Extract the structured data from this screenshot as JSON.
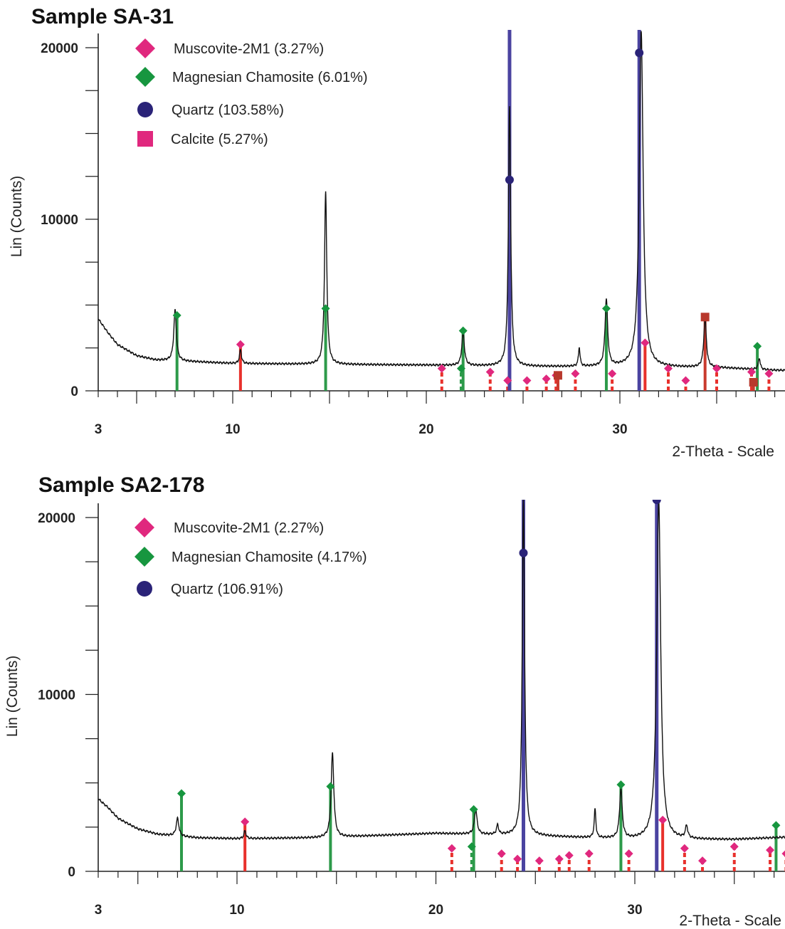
{
  "chart_data": [
    {
      "type": "line",
      "title": "Sample SA-31",
      "xlabel": "2-Theta - Scale",
      "ylabel": "Lin (Counts)",
      "xlim": [
        3,
        41
      ],
      "ylim": [
        0,
        20000
      ],
      "x_ticks": [
        3,
        10,
        20,
        30
      ],
      "y_ticks": [
        0,
        10000,
        20000
      ],
      "grid": false,
      "legend_position": "top-left",
      "legend": [
        {
          "label": "Muscovite-2M1 (3.27%)",
          "marker": "diamond",
          "color": "#e0287e"
        },
        {
          "label": "Magnesian Chamosite (6.01%)",
          "marker": "diamond",
          "color": "#17963f"
        },
        {
          "label": "Quartz (103.58%)",
          "marker": "circle",
          "color": "#2a2378"
        },
        {
          "label": "Calcite (5.27%)",
          "marker": "square",
          "color": "#e0287e"
        }
      ],
      "background": {
        "x": [
          3,
          3.5,
          4,
          5,
          6,
          8,
          10,
          14,
          20,
          25,
          30,
          35,
          38,
          41
        ],
        "y": [
          4200,
          3400,
          2700,
          2050,
          1800,
          1700,
          1600,
          1550,
          1500,
          1420,
          1400,
          1350,
          1200,
          1150
        ]
      },
      "peaks": [
        {
          "x": 7.0,
          "y": 4700,
          "w": 0.08
        },
        {
          "x": 10.4,
          "y": 2400,
          "w": 0.06
        },
        {
          "x": 14.8,
          "y": 11600,
          "w": 0.07
        },
        {
          "x": 21.9,
          "y": 3400,
          "w": 0.08
        },
        {
          "x": 24.3,
          "y": 16600,
          "w": 0.07
        },
        {
          "x": 27.9,
          "y": 2500,
          "w": 0.05
        },
        {
          "x": 29.3,
          "y": 5300,
          "w": 0.08
        },
        {
          "x": 31.1,
          "y": 21000,
          "w": 0.12
        },
        {
          "x": 34.4,
          "y": 4200,
          "w": 0.08
        },
        {
          "x": 37.2,
          "y": 1900,
          "w": 0.06
        }
      ],
      "stick_series": [
        {
          "phase": "Muscovite-2M1",
          "color": "#e0287e",
          "stick_color": "#e8312c",
          "marker": "diamond",
          "x": [
            10.4,
            20.8,
            23.3,
            24.2,
            25.2,
            26.2,
            26.7,
            27.7,
            29.6,
            31.3,
            32.5,
            33.4,
            35.0,
            36.8,
            37.7
          ],
          "y": [
            2700,
            1300,
            1100,
            600,
            600,
            700,
            900,
            1000,
            1000,
            2800,
            1300,
            600,
            1300,
            1100,
            1000
          ]
        },
        {
          "phase": "Magnesian Chamosite",
          "color": "#17963f",
          "stick_color": "#2d9a4a",
          "marker": "diamond",
          "x": [
            7.1,
            14.8,
            21.9,
            21.8,
            29.3,
            37.1
          ],
          "y": [
            4400,
            4800,
            3500,
            1300,
            4800,
            2600
          ]
        },
        {
          "phase": "Quartz",
          "color": "#2a2378",
          "stick_color": "#4a43a0",
          "marker": "circle",
          "x": [
            24.3,
            31.0
          ],
          "y": [
            12300,
            19700
          ]
        },
        {
          "phase": "Calcite",
          "color": "#b8382c",
          "stick_color": "#c93a2e",
          "marker": "square",
          "x": [
            26.8,
            34.4,
            36.9
          ],
          "y": [
            900,
            4300,
            500
          ]
        }
      ]
    },
    {
      "type": "line",
      "title": "Sample SA2-178",
      "xlabel": "2-Theta - Scale",
      "ylabel": "Lin (Counts)",
      "xlim": [
        3,
        41
      ],
      "ylim": [
        0,
        20000
      ],
      "x_ticks": [
        3,
        10,
        20,
        30
      ],
      "y_ticks": [
        0,
        10000,
        20000
      ],
      "grid": false,
      "legend_position": "top-left",
      "legend": [
        {
          "label": "Muscovite-2M1 (2.27%)",
          "marker": "diamond",
          "color": "#e0287e"
        },
        {
          "label": "Magnesian Chamosite (4.17%)",
          "marker": "diamond",
          "color": "#17963f"
        },
        {
          "label": "Quartz (106.91%)",
          "marker": "circle",
          "color": "#2a2378"
        }
      ],
      "background": {
        "x": [
          3,
          3.5,
          4,
          5,
          6,
          8,
          10,
          14,
          20,
          25,
          30,
          35,
          38,
          41
        ],
        "y": [
          4100,
          3600,
          3000,
          2400,
          2100,
          1900,
          1850,
          1900,
          2150,
          2000,
          1800,
          1800,
          1950,
          2000
        ]
      },
      "peaks": [
        {
          "x": 7.0,
          "y": 3000,
          "w": 0.08
        },
        {
          "x": 10.4,
          "y": 2300,
          "w": 0.06
        },
        {
          "x": 14.8,
          "y": 6700,
          "w": 0.08
        },
        {
          "x": 22.0,
          "y": 3500,
          "w": 0.08
        },
        {
          "x": 23.1,
          "y": 2600,
          "w": 0.06
        },
        {
          "x": 24.4,
          "y": 21000,
          "w": 0.07
        },
        {
          "x": 28.0,
          "y": 3500,
          "w": 0.05
        },
        {
          "x": 29.3,
          "y": 4600,
          "w": 0.08
        },
        {
          "x": 31.2,
          "y": 21000,
          "w": 0.12
        },
        {
          "x": 32.6,
          "y": 2500,
          "w": 0.07
        }
      ],
      "stick_series": [
        {
          "phase": "Muscovite-2M1",
          "color": "#e0287e",
          "stick_color": "#e8312c",
          "marker": "diamond",
          "x": [
            10.4,
            20.8,
            23.3,
            24.1,
            25.2,
            26.2,
            26.7,
            27.7,
            29.7,
            31.4,
            32.5,
            33.4,
            35.0,
            36.8,
            37.6
          ],
          "y": [
            2800,
            1300,
            1000,
            700,
            600,
            700,
            900,
            1000,
            1000,
            2900,
            1300,
            600,
            1400,
            1200,
            1000
          ]
        },
        {
          "phase": "Magnesian Chamosite",
          "color": "#17963f",
          "stick_color": "#2d9a4a",
          "marker": "diamond",
          "x": [
            7.2,
            14.7,
            21.9,
            21.8,
            29.3,
            37.1
          ],
          "y": [
            4400,
            4800,
            3500,
            1400,
            4900,
            2600
          ]
        },
        {
          "phase": "Quartz",
          "color": "#2a2378",
          "stick_color": "#4a43a0",
          "marker": "circle",
          "x": [
            24.4,
            31.1
          ],
          "y": [
            18000,
            21000
          ]
        }
      ]
    }
  ]
}
